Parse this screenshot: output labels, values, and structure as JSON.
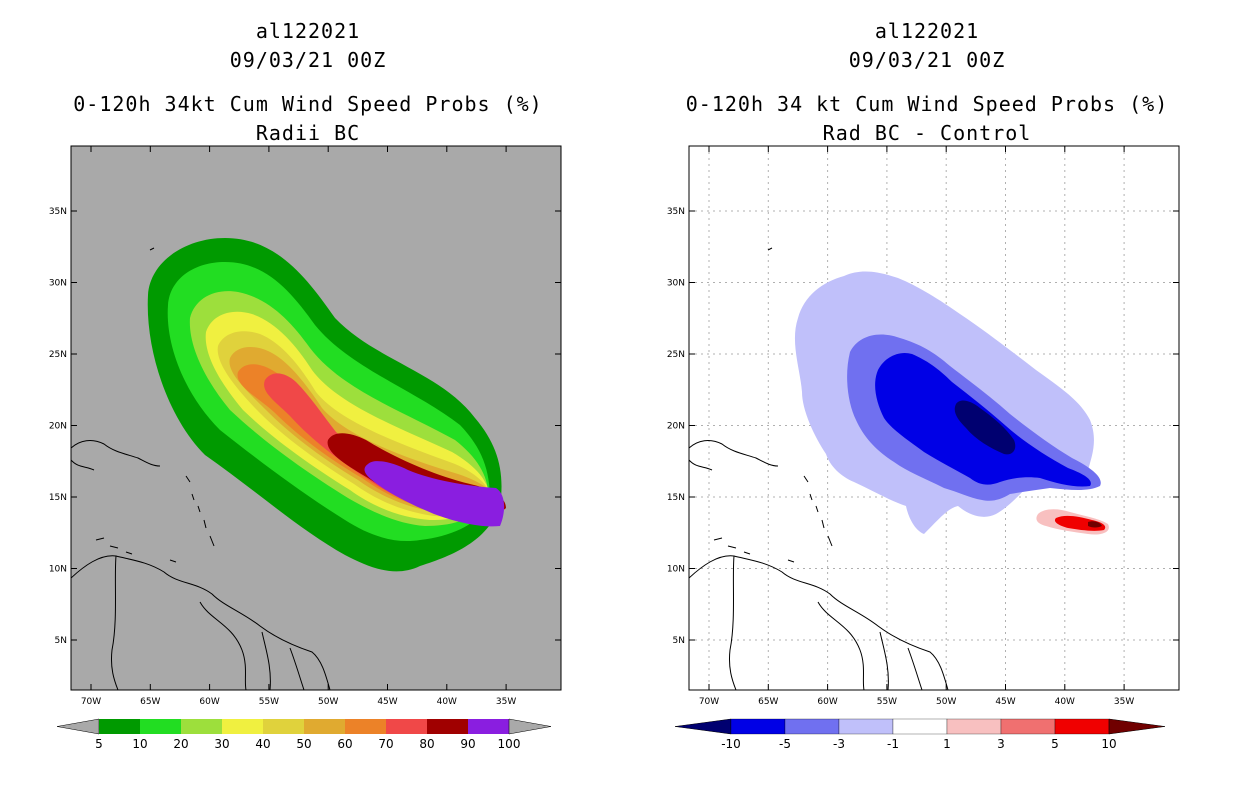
{
  "left_panel": {
    "storm_id": "al122021",
    "datetime": "09/03/21 00Z",
    "title": "0-120h 34kt Cum Wind Speed Probs (%)",
    "subtitle": "Radii BC",
    "background": "#a9a9a9",
    "lon_labels": [
      "70W",
      "65W",
      "60W",
      "55W",
      "50W",
      "45W",
      "40W",
      "35W"
    ],
    "lat_labels": [
      "35N",
      "30N",
      "25N",
      "20N",
      "15N",
      "10N",
      "5N"
    ],
    "colorbar": {
      "labels": [
        "5",
        "10",
        "20",
        "30",
        "40",
        "50",
        "60",
        "70",
        "80",
        "90",
        "100"
      ],
      "colors": [
        "#009a00",
        "#22dd22",
        "#9ddf3c",
        "#f0f040",
        "#e0d23c",
        "#e0aa30",
        "#ec8228",
        "#f04848",
        "#a00000",
        "#8a1ee0"
      ],
      "end_color": "#a9a9a9"
    }
  },
  "right_panel": {
    "storm_id": "al122021",
    "datetime": "09/03/21 00Z",
    "title": "0-120h 34 kt Cum Wind Speed Probs (%)",
    "subtitle": "Rad BC - Control",
    "background": "#ffffff",
    "lon_labels": [
      "70W",
      "65W",
      "60W",
      "55W",
      "50W",
      "45W",
      "40W",
      "35W"
    ],
    "lat_labels": [
      "35N",
      "30N",
      "25N",
      "20N",
      "15N",
      "10N",
      "5N"
    ],
    "colorbar": {
      "labels": [
        "-10",
        "-5",
        "-3",
        "-1",
        "1",
        "3",
        "5",
        "10"
      ],
      "colors": [
        "#0000e6",
        "#7070f0",
        "#c0c0fa",
        "#ffffff",
        "#f8c0c0",
        "#f07070",
        "#f00000"
      ],
      "low_end_color": "#000070",
      "high_end_color": "#700000"
    }
  }
}
